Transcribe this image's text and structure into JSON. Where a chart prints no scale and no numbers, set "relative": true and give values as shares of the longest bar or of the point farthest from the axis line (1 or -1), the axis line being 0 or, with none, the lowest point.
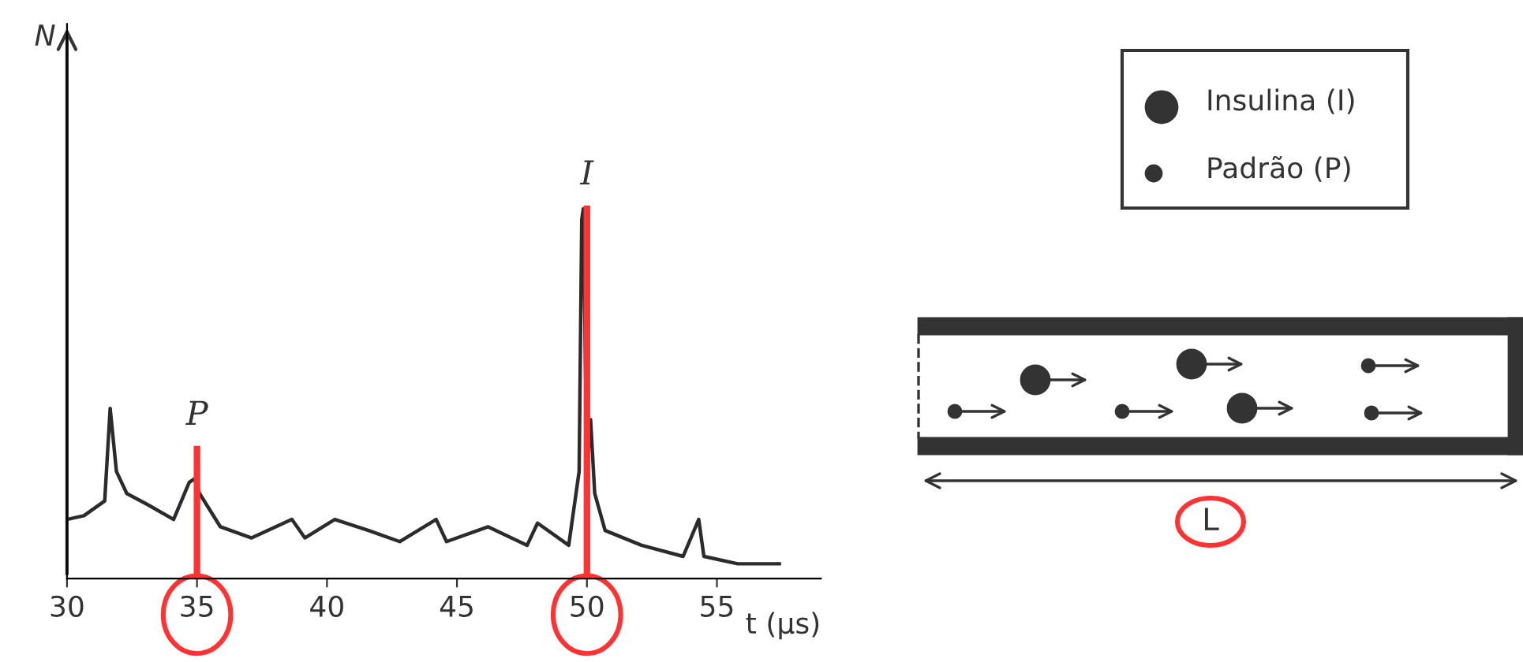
{
  "chart_data": {
    "type": "line",
    "relative": true,
    "xlabel": "t (µs)",
    "xlim": [
      30,
      59
    ],
    "xticks": [
      30,
      35,
      40,
      45,
      50,
      55
    ],
    "grid": false,
    "legend": false,
    "marker": "none",
    "line_style": "solid",
    "series": [
      {
        "color": "#2b2b2b",
        "x": [
          30,
          30.65,
          31.45,
          31.66,
          31.9,
          32.3,
          33.1,
          34.1,
          34.7,
          34.9,
          35.1,
          35.9,
          37.1,
          38.65,
          39.15,
          40.3,
          41.6,
          42.8,
          44.2,
          44.6,
          46.2,
          47.7,
          48.1,
          49.3,
          49.7,
          49.8,
          49.86,
          50.0,
          50.14,
          50.3,
          50.7,
          52.1,
          53.7,
          54.3,
          54.5,
          55.8,
          57.4
        ],
        "values": [
          0.16,
          0.17,
          0.21,
          0.46,
          0.29,
          0.23,
          0.2,
          0.16,
          0.26,
          0.27,
          0.23,
          0.14,
          0.11,
          0.16,
          0.11,
          0.16,
          0.13,
          0.1,
          0.16,
          0.1,
          0.14,
          0.09,
          0.15,
          0.09,
          0.29,
          0.97,
          1.0,
          0.29,
          0.43,
          0.23,
          0.13,
          0.09,
          0.06,
          0.16,
          0.06,
          0.04,
          0.04
        ]
      },
      {
        "color": "#ff3333",
        "x": [
          35,
          35,
          null,
          50,
          50
        ],
        "values": [
          0,
          0.35,
          null,
          0,
          1.0
        ]
      }
    ],
    "annotations": [
      {
        "text": "P",
        "x": 35,
        "y": 0.35
      },
      {
        "text": "I",
        "x": 50,
        "y": 1.0
      },
      "N",
      "Insulina (I)",
      "Padrão (P)",
      "L"
    ]
  }
}
